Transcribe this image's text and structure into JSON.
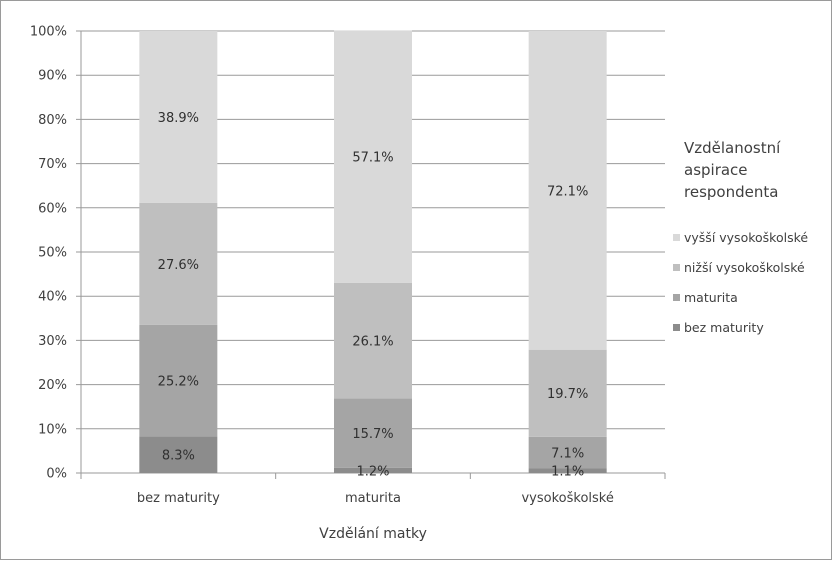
{
  "chart_data": {
    "type": "bar",
    "stacked": true,
    "categories": [
      "bez maturity",
      "maturita",
      "vysokoškolské"
    ],
    "series": [
      {
        "name": "bez maturity",
        "values": [
          8.3,
          1.2,
          1.1
        ],
        "color": "#8c8c8c"
      },
      {
        "name": "maturita",
        "values": [
          25.2,
          15.7,
          7.1
        ],
        "color": "#a5a5a5"
      },
      {
        "name": "nižší vysokoškolské",
        "values": [
          27.6,
          26.1,
          19.7
        ],
        "color": "#bfbfbf"
      },
      {
        "name": "vyšší vysokoškolské",
        "values": [
          38.9,
          57.1,
          72.1
        ],
        "color": "#d9d9d9"
      }
    ],
    "data_labels": [
      [
        "8.3%",
        "1.2%",
        "1.1%"
      ],
      [
        "25.2%",
        "15.7%",
        "7.1%"
      ],
      [
        "27.6%",
        "26.1%",
        "19.7%"
      ],
      [
        "38.9%",
        "57.1%",
        "72.1%"
      ]
    ],
    "ylim": [
      0,
      100
    ],
    "yticks": [
      "0%",
      "10%",
      "20%",
      "30%",
      "40%",
      "50%",
      "60%",
      "70%",
      "80%",
      "90%",
      "100%"
    ],
    "xlabel": "Vzdělání matky",
    "legend": {
      "title_lines": [
        "Vzdělanostní",
        "aspirace",
        "respondenta"
      ],
      "order": [
        3,
        2,
        1,
        0
      ],
      "placement": "right"
    },
    "grid": true
  }
}
